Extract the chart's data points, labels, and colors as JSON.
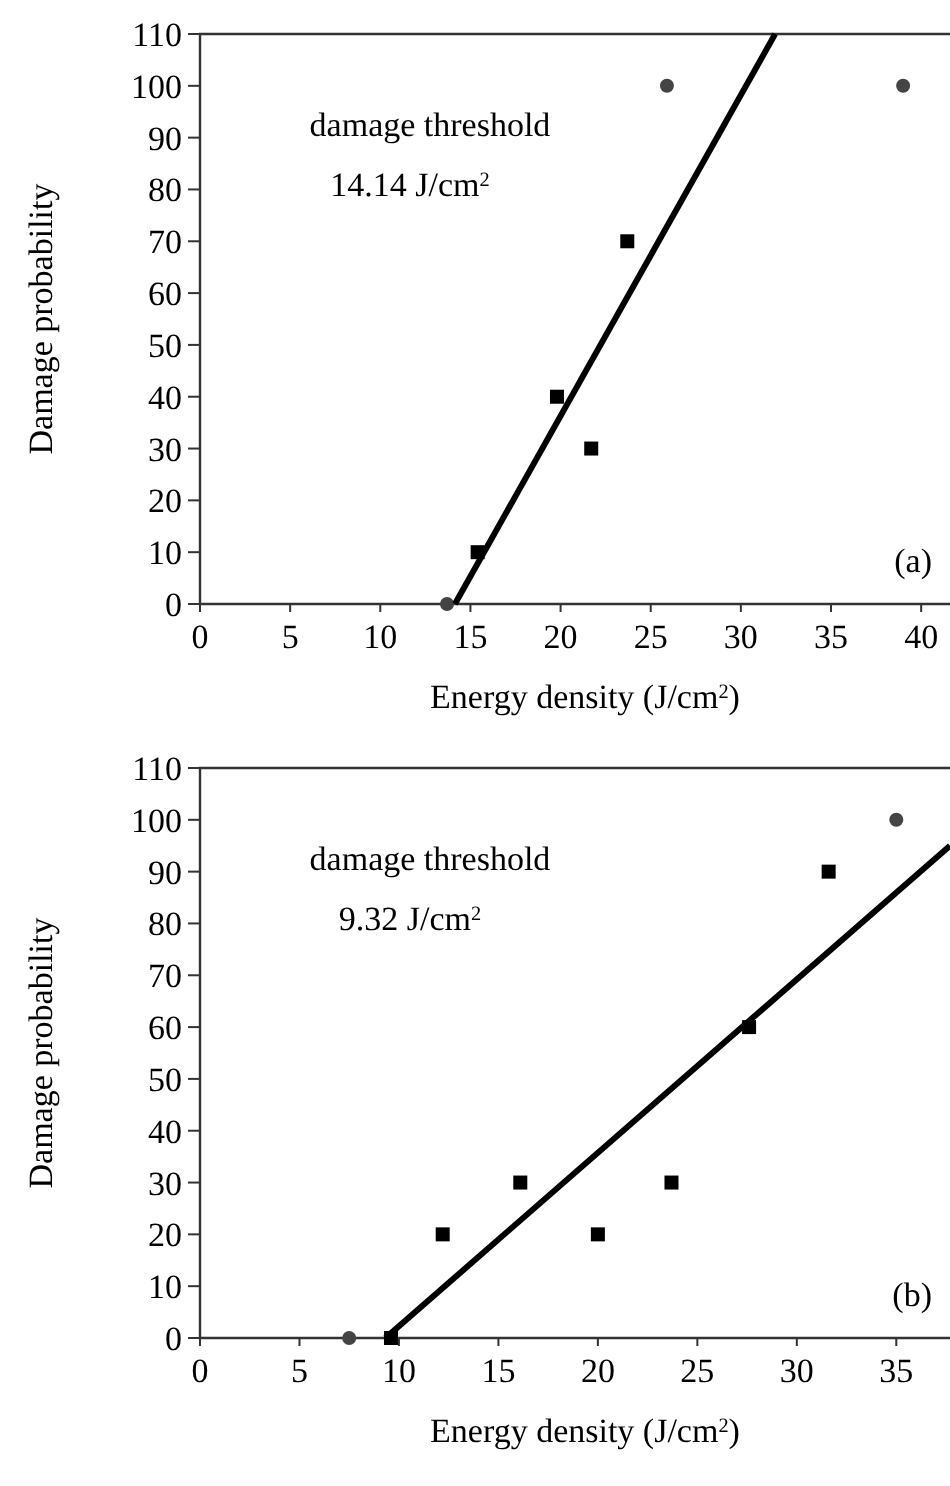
{
  "chart_data": [
    {
      "type": "scatter",
      "xlabel": "Energy density (J/cm$^{2}$)",
      "ylabel": "Damage probability",
      "xlim": [
        0,
        41.6
      ],
      "xticks": [
        0,
        5,
        10,
        15,
        20,
        25,
        30,
        35,
        40
      ],
      "ylim": [
        0,
        110
      ],
      "yticks": [
        0,
        10,
        20,
        30,
        40,
        50,
        60,
        70,
        80,
        90,
        100,
        110
      ],
      "grid": false,
      "annotations": [
        "damage threshold",
        "14.14 J/cm$^{2}$",
        "(a)"
      ],
      "series": [
        {
          "marker": "square",
          "color": "#000000",
          "x": [
            15.4,
            19.8,
            21.7,
            23.7
          ],
          "values": [
            10,
            40,
            30,
            70
          ]
        },
        {
          "marker": "circle",
          "color": "#444444",
          "x": [
            13.7,
            25.9,
            39.0
          ],
          "values": [
            0,
            100,
            100
          ]
        },
        {
          "type": "line",
          "color": "#000000",
          "x": [
            14.14,
            31.9
          ],
          "values": [
            0,
            110
          ]
        }
      ]
    },
    {
      "type": "scatter",
      "xlabel": "Energy density (J/cm$^{2}$)",
      "ylabel": "Damage probability",
      "xlim": [
        0,
        37.7
      ],
      "xticks": [
        0,
        5,
        10,
        15,
        20,
        25,
        30,
        35
      ],
      "ylim": [
        0,
        110
      ],
      "yticks": [
        0,
        10,
        20,
        30,
        40,
        50,
        60,
        70,
        80,
        90,
        100,
        110
      ],
      "grid": false,
      "annotations": [
        "damage threshold",
        "9.32 J/cm$^{2}$",
        "(b)"
      ],
      "series": [
        {
          "marker": "square",
          "color": "#000000",
          "x": [
            9.6,
            12.2,
            16.1,
            20.0,
            23.7,
            27.6,
            31.6
          ],
          "values": [
            0,
            20,
            30,
            20,
            30,
            60,
            90
          ]
        },
        {
          "marker": "circle",
          "color": "#444444",
          "x": [
            7.5,
            35.0
          ],
          "values": [
            0,
            100
          ]
        },
        {
          "type": "line",
          "color": "#000000",
          "x": [
            9.32,
            37.7
          ],
          "values": [
            0,
            95
          ]
        }
      ]
    }
  ]
}
